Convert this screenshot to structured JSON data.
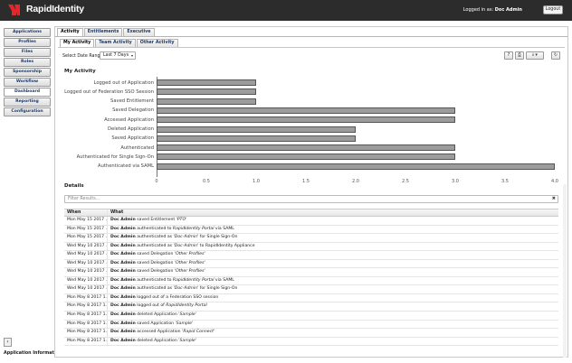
{
  "header": {
    "app_title": "RapidIdentity",
    "logged_in_prefix": "Logged in as: ",
    "user": "Doc Admin",
    "logout_label": "Logout",
    "brand_color": "#e8262a"
  },
  "sidebar": {
    "items": [
      {
        "label": "Applications"
      },
      {
        "label": "Profiles"
      },
      {
        "label": "Files"
      },
      {
        "label": "Roles"
      },
      {
        "label": "Sponsorship"
      },
      {
        "label": "Workflow"
      },
      {
        "label": "Dashboard",
        "active": true
      },
      {
        "label": "Reporting"
      },
      {
        "label": "Configuration"
      }
    ],
    "collapse_icon": "‹",
    "app_info_label": "Application Information"
  },
  "tabs": {
    "top": [
      "Activity",
      "Entitlements",
      "Executive"
    ],
    "sub": [
      "My Activity",
      "Team Activity",
      "Other Activity"
    ]
  },
  "filters": {
    "date_range_label": "Select Date Range:",
    "date_range_value": "Last 7 Days"
  },
  "toolbar": {
    "help_icon": "?",
    "print_icon": "⎙",
    "export_icon": "⭳",
    "export_caret": "▾",
    "refresh_icon": "↻"
  },
  "chart_data": {
    "type": "bar",
    "orientation": "horizontal",
    "title": "My Activity",
    "categories": [
      "Logged out of Application",
      "Logged out of Federation SSO Session",
      "Saved Entitlement",
      "Saved Delegation",
      "Accessed Application",
      "Deleted Application",
      "Saved Application",
      "Authenticated",
      "Authenticated for Single Sign-On",
      "Authenticated via SAML"
    ],
    "values": [
      1,
      1,
      1,
      3,
      3,
      2,
      2,
      3,
      3,
      4
    ],
    "xlim": [
      0,
      4.0
    ],
    "xticks": [
      "0",
      "0.5",
      "1.0",
      "1.5",
      "2.0",
      "2.5",
      "3.0",
      "3.5",
      "4.0"
    ],
    "bar_color": "#9c9c9c",
    "grid": false
  },
  "details": {
    "title": "Details",
    "filter_placeholder": "Filter Results...",
    "clear_icon": "✖",
    "columns": [
      "When",
      "What"
    ],
    "rows": [
      {
        "when": "Mon May 15 2017 ...",
        "user": "Doc Admin",
        "pre": " saved Entitlement '",
        "obj": "PTO",
        "post": "'"
      },
      {
        "when": "Mon May 15 2017 ...",
        "user": "Doc Admin",
        "pre": " authenticated to ",
        "obj": "RapidIdentity Portal",
        "post": " via SAML"
      },
      {
        "when": "Mon May 15 2017 ...",
        "user": "Doc Admin",
        "pre": " authenticated as '",
        "obj": "Doc-Admin",
        "post": "' for Single Sign-On"
      },
      {
        "when": "Wed May 10 2017 ...",
        "user": "Doc Admin",
        "pre": " authenticated as '",
        "obj": "Doc-Admin",
        "post": "' to RapidIdentity Appliance"
      },
      {
        "when": "Wed May 10 2017 ...",
        "user": "Doc Admin",
        "pre": " saved Delegation '",
        "obj": "Other Profiles",
        "post": "'"
      },
      {
        "when": "Wed May 10 2017 ...",
        "user": "Doc Admin",
        "pre": " saved Delegation '",
        "obj": "Other Profiles",
        "post": "'"
      },
      {
        "when": "Wed May 10 2017 ...",
        "user": "Doc Admin",
        "pre": " saved Delegation '",
        "obj": "Other Profiles",
        "post": "'"
      },
      {
        "when": "Wed May 10 2017 ...",
        "user": "Doc Admin",
        "pre": " authenticated to ",
        "obj": "RapidIdentity Portal",
        "post": " via SAML"
      },
      {
        "when": "Wed May 10 2017 ...",
        "user": "Doc Admin",
        "pre": " authenticated as '",
        "obj": "Doc-Admin",
        "post": "' for Single Sign-On"
      },
      {
        "when": "Mon May 8 2017 1...",
        "user": "Doc Admin",
        "pre": " logged out of a Federation SSO session",
        "obj": "",
        "post": ""
      },
      {
        "when": "Mon May 8 2017 1...",
        "user": "Doc Admin",
        "pre": " logged out of ",
        "obj": "RapidIdentity Portal",
        "post": ""
      },
      {
        "when": "Mon May 8 2017 1...",
        "user": "Doc Admin",
        "pre": " deleted Application '",
        "obj": "Sample",
        "post": "'"
      },
      {
        "when": "Mon May 8 2017 1...",
        "user": "Doc Admin",
        "pre": " saved Application '",
        "obj": "Sample",
        "post": "'"
      },
      {
        "when": "Mon May 8 2017 1...",
        "user": "Doc Admin",
        "pre": " accessed Application '",
        "obj": "Rapid Connect",
        "post": "'"
      },
      {
        "when": "Mon May 8 2017 1...",
        "user": "Doc Admin",
        "pre": " deleted Application '",
        "obj": "Sample",
        "post": "'"
      }
    ]
  }
}
